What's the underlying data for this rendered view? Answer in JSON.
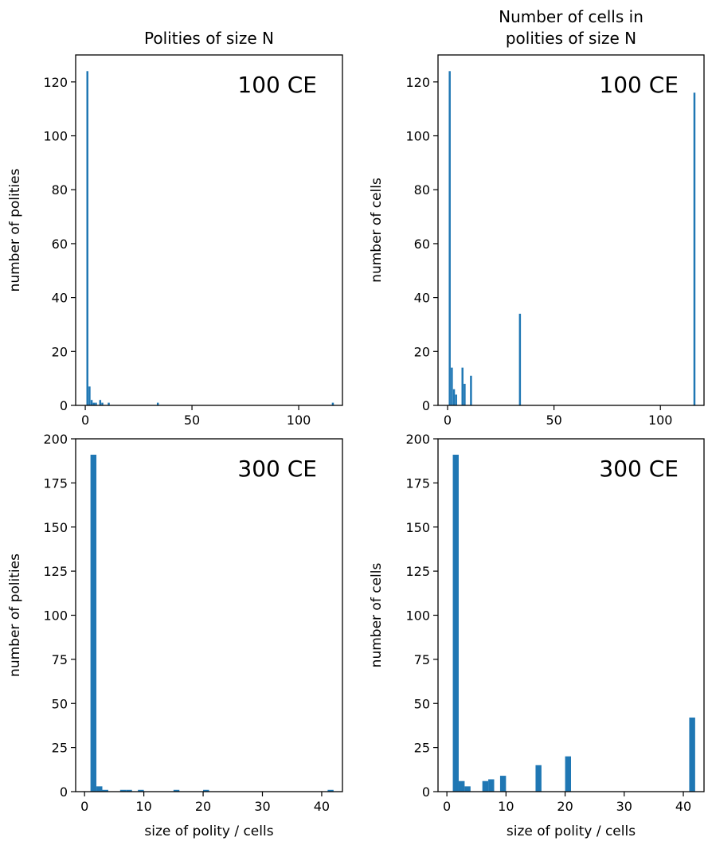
{
  "colors": {
    "bar": "#1f77b4",
    "axis": "#000000",
    "background": "#ffffff"
  },
  "chart_data": [
    {
      "id": "top-left",
      "type": "bar",
      "title_lines": [
        "Polities of size N"
      ],
      "annotation": "100 CE",
      "xlabel": "",
      "ylabel": "number of polities",
      "xlim": [
        -4.5,
        120.5
      ],
      "ylim": [
        0,
        130
      ],
      "xticks": [
        0,
        50,
        100
      ],
      "yticks": [
        0,
        20,
        40,
        60,
        80,
        100,
        120
      ],
      "bar_width": 0.93,
      "x": [
        1,
        2,
        3,
        4,
        5,
        7,
        8,
        11,
        34,
        116
      ],
      "values": [
        124,
        7,
        2,
        1,
        1,
        2,
        1,
        1,
        1,
        1
      ]
    },
    {
      "id": "top-right",
      "type": "bar",
      "title_lines": [
        "Number of cells in",
        "polities of size N"
      ],
      "annotation": "100 CE",
      "xlabel": "",
      "ylabel": "number of cells",
      "xlim": [
        -4.5,
        120.5
      ],
      "ylim": [
        0,
        130
      ],
      "xticks": [
        0,
        50,
        100
      ],
      "yticks": [
        0,
        20,
        40,
        60,
        80,
        100,
        120
      ],
      "bar_width": 0.93,
      "x": [
        1,
        2,
        3,
        4,
        7,
        8,
        11,
        34,
        116
      ],
      "values": [
        124,
        14,
        6,
        4,
        14,
        8,
        11,
        34,
        116
      ]
    },
    {
      "id": "bottom-left",
      "type": "bar",
      "title_lines": [],
      "annotation": "300 CE",
      "xlabel": "size of polity / cells",
      "ylabel": "number of polities",
      "xlim": [
        -1.5,
        43.5
      ],
      "ylim": [
        0,
        200
      ],
      "xticks": [
        0,
        10,
        20,
        30,
        40
      ],
      "yticks": [
        0,
        25,
        50,
        75,
        100,
        125,
        150,
        175,
        200
      ],
      "bar_width": 1.0,
      "x": [
        1.5,
        2.5,
        3.5,
        6.5,
        7.5,
        9.5,
        15.5,
        20.5,
        41.5
      ],
      "values": [
        191,
        3,
        1,
        1,
        1,
        1,
        1,
        1,
        1
      ]
    },
    {
      "id": "bottom-right",
      "type": "bar",
      "title_lines": [],
      "annotation": "300 CE",
      "xlabel": "size of polity / cells",
      "ylabel": "number of cells",
      "xlim": [
        -1.5,
        43.5
      ],
      "ylim": [
        0,
        200
      ],
      "xticks": [
        0,
        10,
        20,
        30,
        40
      ],
      "yticks": [
        0,
        25,
        50,
        75,
        100,
        125,
        150,
        175,
        200
      ],
      "bar_width": 1.0,
      "x": [
        1.5,
        2.5,
        3.5,
        6.5,
        7.5,
        9.5,
        15.5,
        20.5,
        41.5
      ],
      "values": [
        191,
        6,
        3,
        6,
        7,
        9,
        15,
        20,
        42
      ]
    }
  ]
}
